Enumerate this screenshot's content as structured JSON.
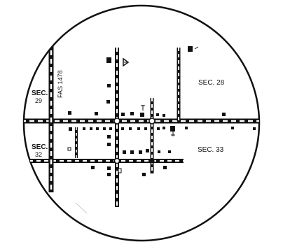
{
  "map": {
    "section_labels": {
      "sec28": "SEC. 28",
      "sec29_line1": "SEC.",
      "sec29_line2": "29",
      "sec32_line1": "SEC.",
      "sec32_line2": "32",
      "sec33": "SEC. 33"
    },
    "road_label": "FAS 1478",
    "colors": {
      "ink": "#111111",
      "background": "#ffffff"
    }
  }
}
